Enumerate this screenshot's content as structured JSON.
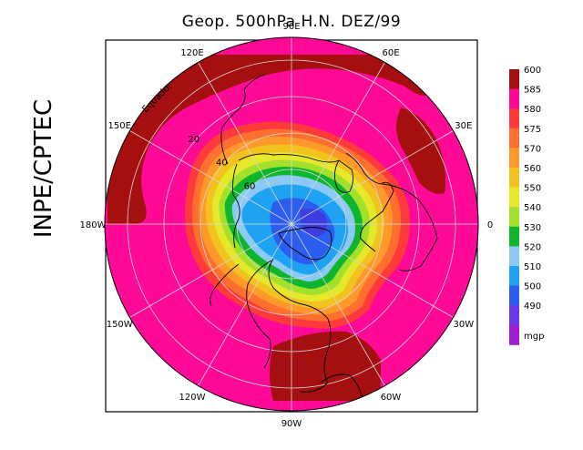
{
  "title": "Geop. 500hPa H.N. DEZ/99",
  "side_label": "INPE/CPTEC",
  "equator_label": "Equador",
  "longitude_labels": [
    {
      "text": "90E",
      "deg": 90
    },
    {
      "text": "60E",
      "deg": 60
    },
    {
      "text": "30E",
      "deg": 30
    },
    {
      "text": "0",
      "deg": 0
    },
    {
      "text": "30W",
      "deg": -30
    },
    {
      "text": "60W",
      "deg": -60
    },
    {
      "text": "90W",
      "deg": -90
    },
    {
      "text": "120W",
      "deg": -120
    },
    {
      "text": "150W",
      "deg": -150
    },
    {
      "text": "180W",
      "deg": 180
    },
    {
      "text": "150E",
      "deg": 150
    },
    {
      "text": "120E",
      "deg": 120
    }
  ],
  "latitude_labels": [
    {
      "text": "20",
      "lat": 20
    },
    {
      "text": "40",
      "lat": 40
    },
    {
      "text": "60",
      "lat": 60
    }
  ],
  "legend": {
    "unit": "mgp",
    "levels": [
      {
        "value": "600",
        "color": "#a50f0f"
      },
      {
        "value": "585",
        "color": "#ff0a96"
      },
      {
        "value": "580",
        "color": "#ff3a3a"
      },
      {
        "value": "575",
        "color": "#ff7030"
      },
      {
        "value": "570",
        "color": "#ff9a2a"
      },
      {
        "value": "560",
        "color": "#f2c31e"
      },
      {
        "value": "550",
        "color": "#e6e82a"
      },
      {
        "value": "540",
        "color": "#a3e02c"
      },
      {
        "value": "530",
        "color": "#10b52e"
      },
      {
        "value": "520",
        "color": "#8ccaf5"
      },
      {
        "value": "510",
        "color": "#1ea3f2"
      },
      {
        "value": "500",
        "color": "#2b5df0"
      },
      {
        "value": "490",
        "color": "#6a3ae6"
      },
      {
        "value": "",
        "color": "#a01ed2"
      }
    ]
  },
  "colors": {
    "dark_red": "#a50f0f",
    "magenta": "#ff0a96",
    "red": "#ff3a3a",
    "orange": "#ff7030",
    "light_orange": "#ff9a2a",
    "gold": "#f2c31e",
    "yellow": "#e6e82a",
    "lime": "#a3e02c",
    "green": "#10b52e",
    "light_blue": "#8ccaf5",
    "mid_blue": "#1ea3f2",
    "blue": "#2b5df0",
    "indigo": "#3d3ce0",
    "grid": "#d8d8d8",
    "coast": "#000000"
  }
}
